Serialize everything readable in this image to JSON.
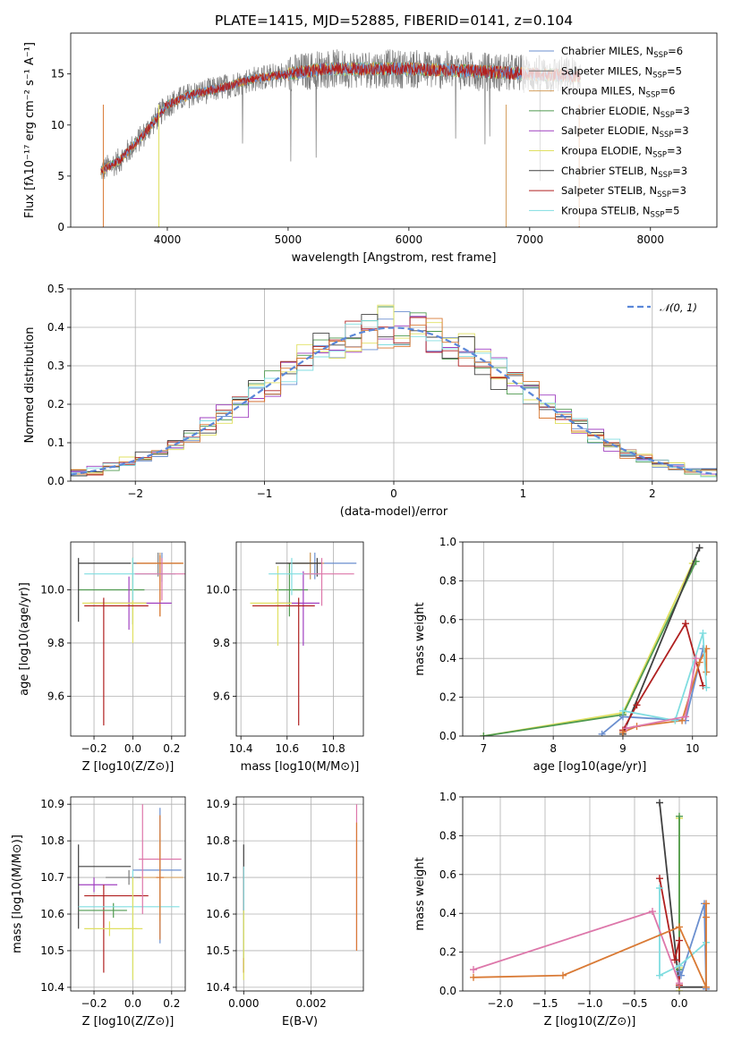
{
  "figure": {
    "title": "PLATE=1415, MJD=52885, FIBERID=0141, z=0.104"
  },
  "colors": [
    "#6b8fcf",
    "#7a7a7a",
    "#d4a060",
    "#4f9a4f",
    "#a040c0",
    "#e0e060",
    "#404040",
    "#b02020",
    "#80dde0",
    "#dd77aa",
    "#d97a35"
  ],
  "chart_data": [
    {
      "id": "spectrum",
      "type": "line",
      "xlabel": "wavelength [Angstrom, rest frame]",
      "ylabel": "Flux [fλ10⁻¹⁷ erg cm⁻² s⁻¹ A⁻¹]",
      "xlim": [
        3200,
        8550
      ],
      "ylim": [
        0,
        19
      ],
      "xticks": [
        "4000",
        "5000",
        "6000",
        "7000",
        "8000"
      ],
      "yticks": [
        "0",
        "5",
        "10",
        "15"
      ],
      "data_trend": {
        "x": [
          3450,
          3600,
          3800,
          4000,
          4200,
          4400,
          4700,
          5000,
          5300,
          5600,
          6000,
          6500,
          7000,
          7400
        ],
        "y": [
          5.5,
          6.5,
          9.0,
          12.0,
          13.0,
          13.5,
          14.5,
          15.0,
          15.5,
          15.5,
          15.5,
          15.3,
          15.0,
          14.8
        ]
      },
      "model_trend": {
        "x": [
          3450,
          3600,
          3800,
          4000,
          4200,
          4400,
          4700,
          5000,
          5300,
          5600,
          6000,
          6500,
          7000,
          7400
        ],
        "y": [
          5.5,
          6.3,
          8.8,
          11.8,
          12.8,
          13.4,
          14.3,
          14.8,
          15.3,
          15.4,
          15.4,
          15.2,
          15.0,
          14.8
        ]
      },
      "legend": [
        {
          "label": "Chabrier MILES, N",
          "sub": "SSP",
          "suffix": "=6",
          "color": "#6b8fcf"
        },
        {
          "label": "Salpeter MILES, N",
          "sub": "SSP",
          "suffix": "=5",
          "color": "#7a7a7a"
        },
        {
          "label": "Kroupa MILES, N",
          "sub": "SSP",
          "suffix": "=6",
          "color": "#d4a060"
        },
        {
          "label": "Chabrier ELODIE, N",
          "sub": "SSP",
          "suffix": "=3",
          "color": "#4f9a4f"
        },
        {
          "label": "Salpeter ELODIE, N",
          "sub": "SSP",
          "suffix": "=3",
          "color": "#a040c0"
        },
        {
          "label": "Kroupa ELODIE, N",
          "sub": "SSP",
          "suffix": "=3",
          "color": "#e0e060"
        },
        {
          "label": "Chabrier STELIB, N",
          "sub": "SSP",
          "suffix": "=3",
          "color": "#404040"
        },
        {
          "label": "Salpeter STELIB, N",
          "sub": "SSP",
          "suffix": "=3",
          "color": "#b02020"
        },
        {
          "label": "Kroupa STELIB, N",
          "sub": "SSP",
          "suffix": "=5",
          "color": "#80dde0"
        }
      ]
    },
    {
      "id": "residuals",
      "type": "line",
      "xlabel": "(data-model)/error",
      "ylabel": "Normed distribution",
      "xlim": [
        -2.5,
        2.5
      ],
      "ylim": [
        0,
        0.5
      ],
      "xticks": [
        "−2",
        "−1",
        "0",
        "1",
        "2"
      ],
      "yticks": [
        "0.0",
        "0.1",
        "0.2",
        "0.3",
        "0.4",
        "0.5"
      ],
      "legend": [
        {
          "label": "𝒩(0, 1)",
          "color": "#5b87d8"
        }
      ],
      "gaussian": {
        "mu": 0,
        "sigma": 1
      }
    },
    {
      "id": "age_vs_Z",
      "type": "scatter",
      "xlabel": "Z [log10(Z/Z⊙)]",
      "ylabel": "age  [log10(age/yr)]",
      "xlim": [
        -0.32,
        0.27
      ],
      "ylim": [
        9.45,
        10.18
      ],
      "xticks": [
        "−0.2",
        "0.0",
        "0.2"
      ],
      "yticks": [
        "9.6",
        "9.8",
        "10.0"
      ],
      "points": [
        {
          "x": 0.15,
          "y": 10.1,
          "xerr": [
            0.15,
            0.1
          ],
          "yerr": [
            0.07,
            0.04
          ],
          "color": "#6b8fcf"
        },
        {
          "x": 0.13,
          "y": 10.1,
          "xerr": [
            0.13,
            0.12
          ],
          "yerr": [
            0.05,
            0.04
          ],
          "color": "#7a7a7a"
        },
        {
          "x": 0.14,
          "y": 10.1,
          "xerr": [
            0.12,
            0.12
          ],
          "yerr": [
            0.2,
            0.04
          ],
          "color": "#d4a060"
        },
        {
          "x": 0.14,
          "y": 10.1,
          "xerr": [
            0.12,
            0.12
          ],
          "yerr": [
            0.2,
            0.03
          ],
          "color": "#d97a35"
        },
        {
          "x": 0.0,
          "y": 10.0,
          "xerr": [
            0.28,
            0.06
          ],
          "yerr": [
            0.13,
            0.12
          ],
          "color": "#4f9a4f"
        },
        {
          "x": -0.02,
          "y": 9.95,
          "xerr": [
            0.2,
            0.22
          ],
          "yerr": [
            0.1,
            0.1
          ],
          "color": "#a040c0"
        },
        {
          "x": 0.0,
          "y": 9.95,
          "xerr": [
            0.26,
            0.07
          ],
          "yerr": [
            0.15,
            0.16
          ],
          "color": "#e0e060"
        },
        {
          "x": -0.28,
          "y": 10.1,
          "xerr": [
            0.0,
            0.27
          ],
          "yerr": [
            0.22,
            0.02
          ],
          "color": "#404040"
        },
        {
          "x": -0.15,
          "y": 9.94,
          "xerr": [
            0.1,
            0.23
          ],
          "yerr": [
            0.45,
            0.03
          ],
          "color": "#b02020"
        },
        {
          "x": 0.0,
          "y": 10.06,
          "xerr": [
            0.25,
            0.22
          ],
          "yerr": [
            0.1,
            0.06
          ],
          "color": "#80dde0"
        },
        {
          "x": 0.15,
          "y": 10.06,
          "xerr": [
            0.14,
            0.12
          ],
          "yerr": [
            0.1,
            0.06
          ],
          "color": "#dd77aa"
        }
      ]
    },
    {
      "id": "age_vs_mass",
      "type": "scatter",
      "xlabel": "mass [log10(M/M⊙)]",
      "ylabel": "",
      "xlim": [
        10.38,
        10.93
      ],
      "ylim": [
        9.45,
        10.18
      ],
      "xticks": [
        "10.4",
        "10.6",
        "10.8"
      ],
      "yticks": [
        "9.6",
        "9.8",
        "10.0"
      ],
      "points": [
        {
          "x": 10.72,
          "y": 10.1,
          "xerr": [
            0.12,
            0.18
          ],
          "yerr": [
            0.06,
            0.04
          ],
          "color": "#6b8fcf"
        },
        {
          "x": 10.7,
          "y": 10.1,
          "xerr": [
            0.08,
            0.05
          ],
          "yerr": [
            0.06,
            0.04
          ],
          "color": "#7a7a7a"
        },
        {
          "x": 10.7,
          "y": 10.1,
          "xerr": [
            0.1,
            0.06
          ],
          "yerr": [
            0.06,
            0.04
          ],
          "color": "#d4a060"
        },
        {
          "x": 10.61,
          "y": 10.0,
          "xerr": [
            0.06,
            0.08
          ],
          "yerr": [
            0.1,
            0.1
          ],
          "color": "#4f9a4f"
        },
        {
          "x": 10.67,
          "y": 9.95,
          "xerr": [
            0.12,
            0.07
          ],
          "yerr": [
            0.16,
            0.12
          ],
          "color": "#a040c0"
        },
        {
          "x": 10.56,
          "y": 9.95,
          "xerr": [
            0.12,
            0.06
          ],
          "yerr": [
            0.16,
            0.14
          ],
          "color": "#e0e060"
        },
        {
          "x": 10.73,
          "y": 10.1,
          "xerr": [
            0.18,
            0.02
          ],
          "yerr": [
            0.05,
            0.02
          ],
          "color": "#404040"
        },
        {
          "x": 10.65,
          "y": 9.94,
          "xerr": [
            0.2,
            0.07
          ],
          "yerr": [
            0.45,
            0.03
          ],
          "color": "#b02020"
        },
        {
          "x": 10.62,
          "y": 10.06,
          "xerr": [
            0.1,
            0.12
          ],
          "yerr": [
            0.08,
            0.06
          ],
          "color": "#80dde0"
        },
        {
          "x": 10.75,
          "y": 10.06,
          "xerr": [
            0.08,
            0.14
          ],
          "yerr": [
            0.12,
            0.06
          ],
          "color": "#dd77aa"
        }
      ]
    },
    {
      "id": "mass_weight_vs_age",
      "type": "line",
      "xlabel": "age  [log10(age/yr)]",
      "ylabel": "mass weight",
      "xlim": [
        6.7,
        10.35
      ],
      "ylim": [
        0,
        1.0
      ],
      "xticks": [
        "7",
        "8",
        "9",
        "10"
      ],
      "yticks": [
        "0.0",
        "0.2",
        "0.4",
        "0.6",
        "0.8",
        "1.0"
      ],
      "series": [
        {
          "color": "#e0e060",
          "x": [
            7.0,
            9.0,
            10.0
          ],
          "y": [
            0.0,
            0.12,
            0.89
          ]
        },
        {
          "color": "#4f9a4f",
          "x": [
            7.0,
            9.0,
            10.05
          ],
          "y": [
            0.0,
            0.11,
            0.9
          ]
        },
        {
          "color": "#404040",
          "x": [
            9.0,
            10.1
          ],
          "y": [
            0.01,
            0.97
          ]
        },
        {
          "color": "#6b8fcf",
          "x": [
            8.7,
            9.0,
            9.9,
            10.15
          ],
          "y": [
            0.01,
            0.1,
            0.08,
            0.45
          ]
        },
        {
          "color": "#b02020",
          "x": [
            9.0,
            9.2,
            9.9,
            10.15
          ],
          "y": [
            0.03,
            0.16,
            0.58,
            0.26
          ]
        },
        {
          "color": "#d97a35",
          "x": [
            9.0,
            9.2,
            9.85,
            10.1,
            10.2,
            10.2
          ],
          "y": [
            0.02,
            0.05,
            0.08,
            0.38,
            0.45,
            0.33
          ]
        },
        {
          "color": "#80dde0",
          "x": [
            9.0,
            9.75,
            10.15,
            10.2
          ],
          "y": [
            0.13,
            0.08,
            0.53,
            0.25
          ]
        },
        {
          "color": "#dd77aa",
          "x": [
            9.05,
            9.9,
            10.05
          ],
          "y": [
            0.04,
            0.1,
            0.4
          ]
        }
      ]
    },
    {
      "id": "mass_vs_Z",
      "type": "scatter",
      "xlabel": "Z [log10(Z/Z⊙)]",
      "ylabel": "mass [log10(M/M⊙)]",
      "xlim": [
        -0.32,
        0.27
      ],
      "ylim": [
        10.39,
        10.92
      ],
      "xticks": [
        "−0.2",
        "0.0",
        "0.2"
      ],
      "yticks": [
        "10.4",
        "10.5",
        "10.6",
        "10.7",
        "10.8",
        "10.9"
      ],
      "points": [
        {
          "x": 0.14,
          "y": 10.72,
          "xerr": [
            0.14,
            0.11
          ],
          "yerr": [
            0.2,
            0.17
          ],
          "color": "#6b8fcf"
        },
        {
          "x": 0.14,
          "y": 10.7,
          "xerr": [
            0.12,
            0.12
          ],
          "yerr": [
            0.12,
            0.12
          ],
          "color": "#d4a060"
        },
        {
          "x": -0.02,
          "y": 10.7,
          "xerr": [
            0.12,
            0.06
          ],
          "yerr": [
            0.02,
            0.02
          ],
          "color": "#7a7a7a"
        },
        {
          "x": -0.2,
          "y": 10.68,
          "xerr": [
            0.08,
            0.12
          ],
          "yerr": [
            0.02,
            0.02
          ],
          "color": "#a040c0"
        },
        {
          "x": -0.28,
          "y": 10.73,
          "xerr": [
            0.0,
            0.27
          ],
          "yerr": [
            0.17,
            0.06
          ],
          "color": "#404040"
        },
        {
          "x": -0.15,
          "y": 10.65,
          "xerr": [
            0.1,
            0.23
          ],
          "yerr": [
            0.21,
            0.03
          ],
          "color": "#b02020"
        },
        {
          "x": -0.1,
          "y": 10.61,
          "xerr": [
            0.18,
            0.07
          ],
          "yerr": [
            0.02,
            0.02
          ],
          "color": "#4f9a4f"
        },
        {
          "x": 0.0,
          "y": 10.62,
          "xerr": [
            0.28,
            0.24
          ],
          "yerr": [
            0.2,
            0.1
          ],
          "color": "#80dde0"
        },
        {
          "x": -0.12,
          "y": 10.56,
          "xerr": [
            0.13,
            0.17
          ],
          "yerr": [
            0.02,
            0.02
          ],
          "color": "#e0e060"
        },
        {
          "x": 0.0,
          "y": 10.56,
          "xerr": [
            0.02,
            0.02
          ],
          "yerr": [
            0.14,
            0.14
          ],
          "color": "#e0e060"
        },
        {
          "x": 0.05,
          "y": 10.75,
          "xerr": [
            0.02,
            0.2
          ],
          "yerr": [
            0.15,
            0.15
          ],
          "color": "#dd77aa"
        },
        {
          "x": 0.14,
          "y": 10.7,
          "xerr": [
            0.02,
            0.02
          ],
          "yerr": [
            0.17,
            0.17
          ],
          "color": "#d97a35"
        }
      ]
    },
    {
      "id": "mass_vs_ebv",
      "type": "scatter",
      "xlabel": "E(B-V)",
      "ylabel": "",
      "xlim": [
        -0.00022,
        0.00355
      ],
      "ylim": [
        10.39,
        10.92
      ],
      "xticks": [
        "0.000",
        "0.002"
      ],
      "yticks": [
        "10.4",
        "10.5",
        "10.6",
        "10.7",
        "10.8",
        "10.9"
      ],
      "points": [
        {
          "x": 0.0,
          "y": 10.65,
          "yerr": [
            0.21,
            0.14
          ],
          "color": "#404040"
        },
        {
          "x": 0.0,
          "y": 10.62,
          "yerr": [
            0.18,
            0.11
          ],
          "color": "#b02020"
        },
        {
          "x": 0.0,
          "y": 10.62,
          "yerr": [
            0.14,
            0.11
          ],
          "color": "#80dde0"
        },
        {
          "x": 0.0,
          "y": 10.56,
          "yerr": [
            0.14,
            0.05
          ],
          "color": "#e0e060"
        },
        {
          "x": 0.00335,
          "y": 10.7,
          "yerr": [
            0.2,
            0.2
          ],
          "color": "#dd77aa"
        },
        {
          "x": 0.00335,
          "y": 10.7,
          "yerr": [
            0.2,
            0.15
          ],
          "color": "#d97a35"
        }
      ]
    },
    {
      "id": "mass_weight_vs_Z",
      "type": "line",
      "xlabel": "Z [log10(Z/Z⊙)]",
      "ylabel": "mass weight",
      "xlim": [
        -2.42,
        0.42
      ],
      "ylim": [
        0,
        1.0
      ],
      "xticks": [
        "−2.0",
        "−1.5",
        "−1.0",
        "−0.5",
        "0.0"
      ],
      "yticks": [
        "0.0",
        "0.2",
        "0.4",
        "0.6",
        "0.8",
        "1.0"
      ],
      "series": [
        {
          "color": "#404040",
          "x": [
            -0.22,
            0.0,
            0.3
          ],
          "y": [
            0.97,
            0.02,
            0.02
          ]
        },
        {
          "color": "#e0e060",
          "x": [
            0.0,
            0.0,
            0.0
          ],
          "y": [
            0.0,
            0.12,
            0.89
          ]
        },
        {
          "color": "#4f9a4f",
          "x": [
            0.0,
            0.0
          ],
          "y": [
            0.11,
            0.9
          ]
        },
        {
          "color": "#b02020",
          "x": [
            -0.22,
            -0.05,
            0.0,
            0.0
          ],
          "y": [
            0.58,
            0.16,
            0.26,
            0.03
          ]
        },
        {
          "color": "#6b8fcf",
          "x": [
            0.0,
            0.02,
            0.28,
            0.3
          ],
          "y": [
            0.1,
            0.08,
            0.45,
            0.01
          ]
        },
        {
          "color": "#80dde0",
          "x": [
            -0.22,
            -0.22,
            0.0,
            0.3
          ],
          "y": [
            0.53,
            0.08,
            0.13,
            0.25
          ]
        },
        {
          "color": "#dd77aa",
          "x": [
            -2.3,
            -0.3,
            0.0
          ],
          "y": [
            0.11,
            0.41,
            0.04
          ]
        },
        {
          "color": "#d97a35",
          "x": [
            -2.3,
            -1.3,
            0.0,
            0.3,
            0.3,
            0.3
          ],
          "y": [
            0.07,
            0.08,
            0.33,
            0.02,
            0.45,
            0.38
          ]
        }
      ]
    }
  ]
}
